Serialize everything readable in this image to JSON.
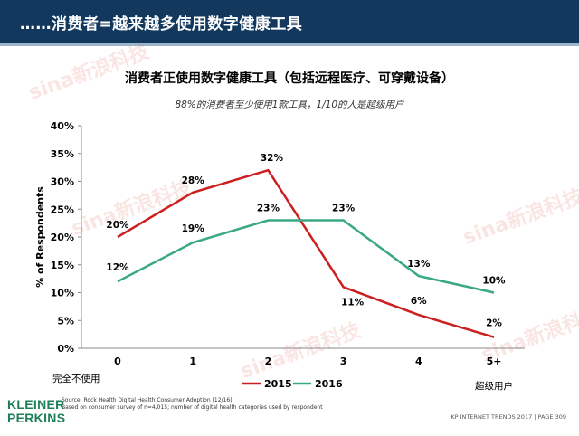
{
  "header": {
    "title": "……消费者=越来越多使用数字健康工具"
  },
  "chart_data": {
    "type": "line",
    "title": "消费者正使用数字健康工具（包括远程医疗、可穿戴设备）",
    "subtitle": "88%的消费者至少使用1款工具，1/10的人是超级用户",
    "ylabel": "% of Respondents",
    "xlabel": "",
    "categories": [
      "0",
      "1",
      "2",
      "3",
      "4",
      "5+"
    ],
    "category_notes": {
      "first": "完全不使用",
      "last": "超级用户"
    },
    "yticks": [
      "0%",
      "5%",
      "10%",
      "15%",
      "20%",
      "25%",
      "30%",
      "35%",
      "40%"
    ],
    "ylim": [
      0,
      40
    ],
    "grid": false,
    "legend": "bottom-center",
    "series": [
      {
        "name": "2015",
        "color": "#cc1f1f",
        "values": [
          20,
          28,
          32,
          11,
          6,
          2
        ],
        "labels": [
          "20%",
          "28%",
          "32%",
          "11%",
          "6%",
          "2%"
        ]
      },
      {
        "name": "2016",
        "color": "#3aa882",
        "values": [
          12,
          19,
          23,
          23,
          13,
          10
        ],
        "labels": [
          "12%",
          "19%",
          "23%",
          "23%",
          "13%",
          "10%"
        ]
      }
    ]
  },
  "source": {
    "line1": "Source: Rock Health Digital Health Consumer Adoption (12/16)",
    "line2": "Based on consumer survey of n=4,015; number of digital health categories used by respondent"
  },
  "logo": {
    "line1": "KLEINER",
    "line2": "PERKINS"
  },
  "footer": {
    "text": "KP INTERNET TRENDS 2017  |  PAGE 309"
  },
  "watermark": {
    "text": "sina新浪科技"
  }
}
